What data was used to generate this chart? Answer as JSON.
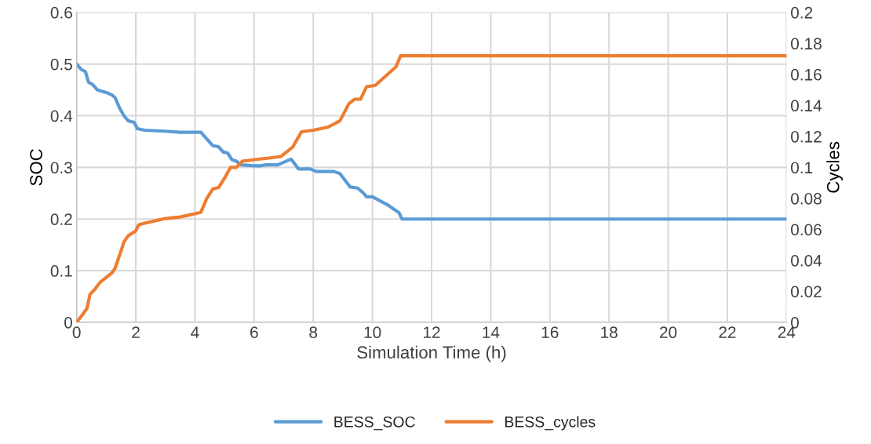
{
  "chart_data": {
    "type": "line",
    "xlabel": "Simulation Time (h)",
    "ylabel": "SOC",
    "y2label": "Cycles",
    "xlim": [
      0,
      24
    ],
    "xticks": [
      0,
      2,
      4,
      6,
      8,
      10,
      12,
      14,
      16,
      18,
      20,
      22,
      24
    ],
    "ylim": [
      0,
      0.6
    ],
    "yticks": [
      0,
      0.1,
      0.2,
      0.3,
      0.4,
      0.5,
      0.6
    ],
    "y2lim": [
      0,
      0.2
    ],
    "y2ticks": [
      0,
      0.02,
      0.04,
      0.06,
      0.08,
      0.1,
      0.12,
      0.14,
      0.16,
      0.18,
      0.2
    ],
    "grid": true,
    "legend": "bottom",
    "line_style": "solid",
    "marker": "none",
    "series": [
      {
        "name": "BESS_SOC",
        "color": "#5b9bd5",
        "x": [
          0,
          0.15,
          0.3,
          0.4,
          0.55,
          0.7,
          1.0,
          1.2,
          1.3,
          1.45,
          1.6,
          1.75,
          1.95,
          2.05,
          2.3,
          3,
          3.5,
          4.2,
          4.4,
          4.6,
          4.8,
          4.95,
          5.1,
          5.25,
          5.4,
          5.55,
          6,
          6.2,
          6.4,
          6.8,
          7.0,
          7.25,
          7.5,
          7.9,
          8.1,
          8.7,
          8.9,
          9.25,
          9.5,
          9.7,
          9.8,
          10.0,
          10.5,
          10.9,
          11.0,
          24
        ],
        "values": [
          0.5,
          0.49,
          0.485,
          0.465,
          0.46,
          0.45,
          0.445,
          0.44,
          0.435,
          0.415,
          0.4,
          0.39,
          0.387,
          0.375,
          0.372,
          0.37,
          0.368,
          0.368,
          0.355,
          0.342,
          0.34,
          0.33,
          0.328,
          0.315,
          0.312,
          0.305,
          0.303,
          0.303,
          0.305,
          0.305,
          0.31,
          0.316,
          0.297,
          0.297,
          0.292,
          0.292,
          0.288,
          0.262,
          0.26,
          0.25,
          0.243,
          0.243,
          0.228,
          0.212,
          0.2,
          0.2
        ]
      },
      {
        "name": "BESS_cycles",
        "color": "#ed7d31",
        "axis": "y2",
        "x": [
          0,
          0.2,
          0.35,
          0.45,
          0.6,
          0.8,
          1.0,
          1.2,
          1.3,
          1.5,
          1.6,
          1.75,
          2.0,
          2.1,
          2.3,
          3.0,
          3.5,
          4.2,
          4.4,
          4.6,
          4.8,
          5.0,
          5.2,
          5.4,
          5.6,
          6,
          6.5,
          6.9,
          7.3,
          7.6,
          8.0,
          8.5,
          8.9,
          9.2,
          9.4,
          9.6,
          9.8,
          10.1,
          10.8,
          10.95,
          24
        ],
        "values": [
          0,
          0.005,
          0.009,
          0.018,
          0.021,
          0.026,
          0.029,
          0.032,
          0.035,
          0.046,
          0.052,
          0.056,
          0.059,
          0.063,
          0.064,
          0.067,
          0.068,
          0.071,
          0.08,
          0.086,
          0.087,
          0.093,
          0.1,
          0.1,
          0.104,
          0.105,
          0.106,
          0.107,
          0.113,
          0.123,
          0.124,
          0.126,
          0.13,
          0.141,
          0.144,
          0.144,
          0.152,
          0.153,
          0.165,
          0.172,
          0.172
        ]
      }
    ]
  }
}
